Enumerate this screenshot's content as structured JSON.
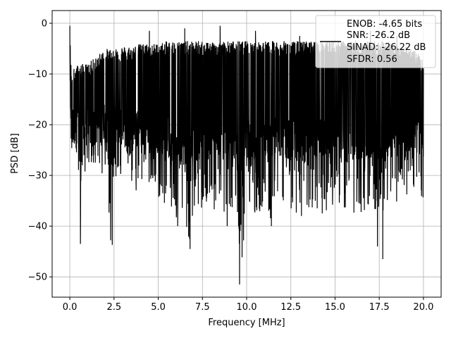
{
  "chart_data": {
    "type": "line",
    "xlabel": "Frequency [MHz]",
    "ylabel": "PSD [dB]",
    "xlim": [
      -1.0,
      21.0
    ],
    "ylim": [
      -54.0,
      2.5
    ],
    "x_ticks": [
      0.0,
      2.5,
      5.0,
      7.5,
      10.0,
      12.5,
      15.0,
      17.5,
      20.0
    ],
    "x_tick_labels": [
      "0.0",
      "2.5",
      "5.0",
      "7.5",
      "10.0",
      "12.5",
      "15.0",
      "17.5",
      "20.0"
    ],
    "y_ticks": [
      0,
      -10,
      -20,
      -30,
      -40,
      -50
    ],
    "y_tick_labels": [
      "0",
      "−10",
      "−20",
      "−30",
      "−40",
      "−50"
    ],
    "grid": true,
    "legend": {
      "placement": "top-right",
      "lines": [
        "ENOB: -4.65 bits",
        "SNR: -26.2 dB",
        "SINAD: -26.22 dB",
        "SFDR: 0.56"
      ]
    },
    "series": [
      {
        "color": "#000000",
        "description": "dense noisy PSD trace over 0-20 MHz",
        "x": [
          0.0,
          0.02,
          0.05,
          0.08,
          0.1,
          0.15,
          0.2,
          0.3,
          0.5,
          0.6,
          0.85,
          1.0,
          1.5,
          2.0,
          2.3,
          2.4,
          2.5,
          3.0,
          3.3,
          3.5,
          4.0,
          4.5,
          5.0,
          5.5,
          6.0,
          6.5,
          6.8,
          7.0,
          7.5,
          8.0,
          8.5,
          8.9,
          9.0,
          9.5,
          9.6,
          10.0,
          10.5,
          11.0,
          11.4,
          11.5,
          12.0,
          12.5,
          13.0,
          13.3,
          13.5,
          14.0,
          14.5,
          15.0,
          15.5,
          16.0,
          16.5,
          17.0,
          17.4,
          17.5,
          17.7,
          18.0,
          18.5,
          19.0,
          19.5,
          20.0
        ],
        "y_upper": [
          -0.5,
          -5,
          -8,
          -10,
          -12,
          -11,
          -10.5,
          -10,
          -9.5,
          -9.5,
          -9.5,
          -9.5,
          -8,
          -6.5,
          -6.5,
          -6,
          -6,
          -6,
          -6,
          -6,
          -5.5,
          -5.5,
          -5.5,
          -5,
          -5,
          -5,
          -5,
          -5,
          -5,
          -5,
          -5,
          -5,
          -5,
          -5,
          -5,
          -5,
          -5,
          -5,
          -5,
          -5,
          -5,
          -5,
          -5,
          -5,
          -5,
          -5,
          -5,
          -5,
          -5,
          -5,
          -5,
          -5,
          -5,
          -5,
          -5,
          -5,
          -6,
          -6,
          -6.5,
          -9
        ],
        "y_lower": [
          -17,
          -20,
          -23,
          -24,
          -25,
          -28,
          -27,
          -28,
          -29,
          -43.5,
          -30,
          -29,
          -30,
          -30,
          -44,
          -30,
          -31,
          -32,
          -35,
          -34,
          -33,
          -32,
          -35,
          -36,
          -40,
          -38,
          -44.5,
          -39,
          -37,
          -38,
          -36,
          -40,
          -37,
          -38,
          -51.5,
          -37,
          -39,
          -36,
          -40,
          -37,
          -36,
          -38,
          -37,
          -39,
          -38,
          -37,
          -38,
          -35,
          -37,
          -39,
          -38,
          -37,
          -44,
          -37,
          -46.5,
          -37,
          -36,
          -34,
          -33,
          -35
        ]
      }
    ],
    "dips": [
      {
        "x": 0.6,
        "y": -43.5
      },
      {
        "x": 2.4,
        "y": -43.7
      },
      {
        "x": 4.5,
        "y": -35.5
      },
      {
        "x": 6.1,
        "y": -40
      },
      {
        "x": 6.8,
        "y": -44.5
      },
      {
        "x": 8.9,
        "y": -40
      },
      {
        "x": 9.6,
        "y": -51.5
      },
      {
        "x": 11.4,
        "y": -40
      },
      {
        "x": 13.1,
        "y": -38
      },
      {
        "x": 17.4,
        "y": -44
      },
      {
        "x": 17.7,
        "y": -46.5
      }
    ],
    "peaks": [
      {
        "x": 0.0,
        "y": -0.5
      },
      {
        "x": 4.5,
        "y": -1.5
      },
      {
        "x": 6.5,
        "y": -1
      },
      {
        "x": 8.5,
        "y": -0.5
      },
      {
        "x": 10.5,
        "y": -1.5
      },
      {
        "x": 13.0,
        "y": -2.5
      },
      {
        "x": 17.0,
        "y": -1.5
      },
      {
        "x": 18.5,
        "y": -2.5
      }
    ]
  }
}
